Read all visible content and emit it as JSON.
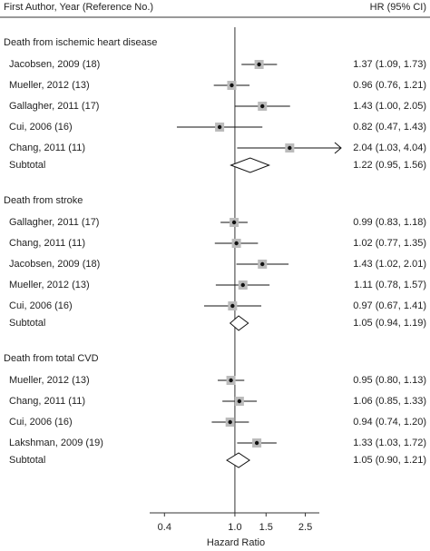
{
  "chart_data": {
    "type": "forest",
    "columns": [
      "First Author, Year (Reference No.)",
      "HR (95% CI)"
    ],
    "x_label": "Hazard Ratio",
    "log_x": true,
    "xlim": [
      0.33,
      3.0
    ],
    "xticks": [
      0.4,
      {
        "value": 1,
        "label": "1.0"
      },
      1.5,
      2.5
    ],
    "reference": 1,
    "marker_color": "#bbbbbb",
    "groups": [
      {
        "title": "Death from ischemic heart disease",
        "studies": [
          {
            "label": "Jacobsen, 2009 (18)",
            "hr": 1.37,
            "lower": 1.09,
            "upper": 1.73,
            "value_label": "1.37 (1.09, 1.73)"
          },
          {
            "label": "Mueller, 2012 (13)",
            "hr": 0.96,
            "lower": 0.76,
            "upper": 1.21,
            "value_label": "0.96 (0.76, 1.21)"
          },
          {
            "label": "Gallagher, 2011 (17)",
            "hr": 1.43,
            "lower": 1.0,
            "upper": 2.05,
            "value_label": "1.43 (1.00, 2.05)"
          },
          {
            "label": "Cui, 2006 (16)",
            "hr": 0.82,
            "lower": 0.47,
            "upper": 1.43,
            "value_label": "0.82 (0.47, 1.43)"
          },
          {
            "label": "Chang, 2011 (11)",
            "hr": 2.04,
            "lower": 1.03,
            "upper": 4.04,
            "value_label": "2.04 (1.03, 4.04)"
          }
        ],
        "subtotal": {
          "label": "Subtotal",
          "hr": 1.22,
          "lower": 0.95,
          "upper": 1.56,
          "value_label": "1.22 (0.95, 1.56)"
        }
      },
      {
        "title": "Death from stroke",
        "studies": [
          {
            "label": "Gallagher, 2011 (17)",
            "hr": 0.99,
            "lower": 0.83,
            "upper": 1.18,
            "value_label": "0.99 (0.83, 1.18)"
          },
          {
            "label": "Chang, 2011 (11)",
            "hr": 1.02,
            "lower": 0.77,
            "upper": 1.35,
            "value_label": "1.02 (0.77, 1.35)"
          },
          {
            "label": "Jacobsen, 2009 (18)",
            "hr": 1.43,
            "lower": 1.02,
            "upper": 2.01,
            "value_label": "1.43 (1.02, 2.01)"
          },
          {
            "label": "Mueller, 2012 (13)",
            "hr": 1.11,
            "lower": 0.78,
            "upper": 1.57,
            "value_label": "1.11 (0.78, 1.57)"
          },
          {
            "label": "Cui, 2006 (16)",
            "hr": 0.97,
            "lower": 0.67,
            "upper": 1.41,
            "value_label": "0.97 (0.67, 1.41)"
          }
        ],
        "subtotal": {
          "label": "Subtotal",
          "hr": 1.05,
          "lower": 0.94,
          "upper": 1.19,
          "value_label": "1.05 (0.94, 1.19)"
        }
      },
      {
        "title": "Death from total CVD",
        "studies": [
          {
            "label": "Mueller, 2012 (13)",
            "hr": 0.95,
            "lower": 0.8,
            "upper": 1.13,
            "value_label": "0.95 (0.80, 1.13)"
          },
          {
            "label": "Chang, 2011 (11)",
            "hr": 1.06,
            "lower": 0.85,
            "upper": 1.33,
            "value_label": "1.06 (0.85, 1.33)"
          },
          {
            "label": "Cui, 2006 (16)",
            "hr": 0.94,
            "lower": 0.74,
            "upper": 1.2,
            "value_label": "0.94 (0.74, 1.20)"
          },
          {
            "label": "Lakshman, 2009 (19)",
            "hr": 1.33,
            "lower": 1.03,
            "upper": 1.72,
            "value_label": "1.33 (1.03, 1.72)"
          }
        ],
        "subtotal": {
          "label": "Subtotal",
          "hr": 1.05,
          "lower": 0.9,
          "upper": 1.21,
          "value_label": "1.05 (0.90, 1.21)"
        }
      }
    ]
  }
}
